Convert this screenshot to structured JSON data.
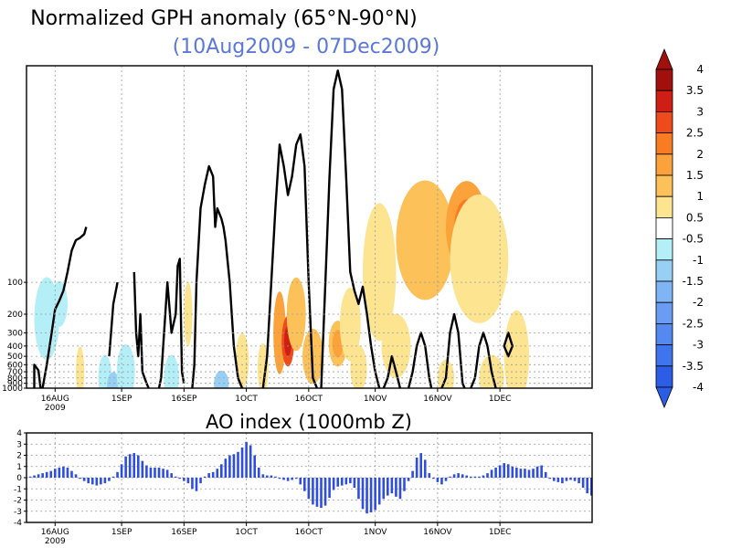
{
  "colors": {
    "pos": [
      "#ffffff",
      "#fde491",
      "#fcc158",
      "#fba23a",
      "#f97b22",
      "#ef4a1b",
      "#cf1f14",
      "#a2100e"
    ],
    "neg": [
      "#ffffff",
      "#b4eef7",
      "#98d0f5",
      "#80b5f5",
      "#6a9cf3",
      "#5489ef",
      "#3f75ec",
      "#2c5ee5"
    ],
    "ao_bar": "#2f4ee0",
    "contour": "#000000"
  },
  "chart_data": [
    {
      "type": "heatmap",
      "title": "Normalized GPH anomaly (65°N-90°N)",
      "subtitle": "(10Aug2009 - 07Dec2009)",
      "x_ticks": [
        {
          "label": "16AUG",
          "sub": "2009",
          "day": 6
        },
        {
          "label": "1SEP",
          "sub": "",
          "day": 22
        },
        {
          "label": "16SEP",
          "sub": "",
          "day": 37
        },
        {
          "label": "1OCT",
          "sub": "",
          "day": 52
        },
        {
          "label": "16OCT",
          "sub": "",
          "day": 67
        },
        {
          "label": "1NOV",
          "sub": "",
          "day": 83
        },
        {
          "label": "16NOV",
          "sub": "",
          "day": 98
        },
        {
          "label": "1DEC",
          "sub": "",
          "day": 113
        }
      ],
      "y_ticks": [
        "100",
        "200",
        "300",
        "400",
        "500",
        "600",
        "700",
        "800",
        "900",
        "1000"
      ],
      "y_tick_values": [
        100,
        200,
        300,
        400,
        500,
        600,
        700,
        800,
        900,
        1000
      ],
      "y_axis": "pressure (log)",
      "colorbar": {
        "labels": [
          "4",
          "3.5",
          "3",
          "2.5",
          "2",
          "1.5",
          "1",
          "0.5",
          "-0.5",
          "-1",
          "-1.5",
          "-2",
          "-2.5",
          "-3",
          "-3.5",
          "-4"
        ],
        "levels": [
          4,
          3.5,
          3,
          2.5,
          2,
          1.5,
          1,
          0.5,
          -0.5,
          -1,
          -1.5,
          -2,
          -2.5,
          -3,
          -3.5,
          -4
        ]
      },
      "regions": [
        {
          "day": 4,
          "p": 220,
          "w": 3.0,
          "h": 0.9,
          "v": -0.95
        },
        {
          "day": 7,
          "p": 160,
          "w": 2.0,
          "h": 0.5,
          "v": -0.8
        },
        {
          "day": 12,
          "p": 700,
          "w": 1.0,
          "h": 0.55,
          "v": 0.9
        },
        {
          "day": 18,
          "p": 800,
          "w": 1.6,
          "h": 0.5,
          "v": -0.9
        },
        {
          "day": 20,
          "p": 950,
          "w": 1.5,
          "h": 0.3,
          "v": -1.2
        },
        {
          "day": 23,
          "p": 700,
          "w": 2.2,
          "h": 0.6,
          "v": -0.8
        },
        {
          "day": 34,
          "p": 800,
          "w": 1.8,
          "h": 0.5,
          "v": -0.7
        },
        {
          "day": 38,
          "p": 200,
          "w": 1.0,
          "h": 0.7,
          "v": 0.75
        },
        {
          "day": 46,
          "p": 920,
          "w": 1.8,
          "h": 0.3,
          "v": -1.0
        },
        {
          "day": 51,
          "p": 550,
          "w": 1.6,
          "h": 0.6,
          "v": 0.8
        },
        {
          "day": 56,
          "p": 650,
          "w": 1.3,
          "h": 0.55,
          "v": 0.7
        },
        {
          "day": 60,
          "p": 300,
          "w": 1.5,
          "h": 0.9,
          "v": 1.6
        },
        {
          "day": 62,
          "p": 360,
          "w": 1.5,
          "h": 0.55,
          "v": 2.7
        },
        {
          "day": 64,
          "p": 200,
          "w": 2.3,
          "h": 0.8,
          "v": 1.2
        },
        {
          "day": 68,
          "p": 500,
          "w": 2.5,
          "h": 0.6,
          "v": 1.0
        },
        {
          "day": 74,
          "p": 380,
          "w": 2.2,
          "h": 0.5,
          "v": 1.3
        },
        {
          "day": 77,
          "p": 250,
          "w": 2.5,
          "h": 0.8,
          "v": 0.9
        },
        {
          "day": 79,
          "p": 650,
          "w": 2.0,
          "h": 0.5,
          "v": 0.8
        },
        {
          "day": 84,
          "p": 80,
          "w": 4.0,
          "h": 1.5,
          "v": 0.7
        },
        {
          "day": 88,
          "p": 400,
          "w": 3.5,
          "h": 0.7,
          "v": 0.6
        },
        {
          "day": 95,
          "p": 40,
          "w": 7.0,
          "h": 1.3,
          "v": 1.05
        },
        {
          "day": 105,
          "p": 30,
          "w": 5.0,
          "h": 1.0,
          "v": 1.85
        },
        {
          "day": 108,
          "p": 60,
          "w": 7.0,
          "h": 1.4,
          "v": 0.8
        },
        {
          "day": 100,
          "p": 800,
          "w": 2.0,
          "h": 0.4,
          "v": 0.6
        },
        {
          "day": 110,
          "p": 900,
          "w": 2.0,
          "h": 0.3,
          "v": -0.7
        },
        {
          "day": 111,
          "p": 800,
          "w": 3.0,
          "h": 0.5,
          "v": 0.9
        },
        {
          "day": 117,
          "p": 500,
          "w": 3.0,
          "h": 1.0,
          "v": 0.7
        }
      ],
      "contours": [
        {
          "closed": false,
          "pts": [
            [
              1,
              1000
            ],
            [
              1,
              600
            ],
            [
              2,
              680
            ],
            [
              2.5,
              1000
            ]
          ]
        },
        {
          "closed": false,
          "pts": [
            [
              3,
              1000
            ],
            [
              4,
              600
            ],
            [
              5,
              330
            ],
            [
              6,
              180
            ],
            [
              7,
              150
            ],
            [
              8,
              120
            ],
            [
              9,
              80
            ],
            [
              10,
              50
            ],
            [
              11,
              40
            ],
            [
              12,
              38
            ],
            [
              13,
              35
            ],
            [
              13.5,
              30
            ]
          ]
        },
        {
          "closed": false,
          "pts": [
            [
              19,
              500
            ],
            [
              20,
              160
            ],
            [
              21,
              100
            ]
          ]
        },
        {
          "closed": false,
          "pts": [
            [
              25,
              80
            ],
            [
              25.5,
              300
            ],
            [
              26,
              500
            ],
            [
              26.5,
              200
            ],
            [
              27,
              700
            ],
            [
              28,
              900
            ],
            [
              28.5,
              1000
            ]
          ]
        },
        {
          "closed": false,
          "pts": [
            [
              31,
              1000
            ],
            [
              31.5,
              800
            ],
            [
              32,
              400
            ],
            [
              33,
              100
            ],
            [
              34,
              300
            ],
            [
              35,
              200
            ],
            [
              35.5,
              70
            ],
            [
              36,
              60
            ],
            [
              36.5,
              700
            ],
            [
              37,
              900
            ]
          ]
        },
        {
          "closed": false,
          "pts": [
            [
              39,
              1000
            ],
            [
              39.5,
              600
            ],
            [
              40,
              100
            ],
            [
              41,
              20
            ],
            [
              42,
              12
            ],
            [
              43,
              8
            ],
            [
              44,
              10
            ],
            [
              44.5,
              30
            ],
            [
              45,
              20
            ],
            [
              46,
              25
            ],
            [
              46.5,
              30
            ],
            [
              47,
              40
            ],
            [
              48,
              100
            ],
            [
              49,
              400
            ],
            [
              50,
              800
            ],
            [
              51,
              1000
            ]
          ]
        },
        {
          "closed": false,
          "pts": [
            [
              56,
              1000
            ],
            [
              57,
              500
            ],
            [
              58,
              100
            ],
            [
              59,
              20
            ],
            [
              60,
              5
            ],
            [
              61,
              8
            ],
            [
              62,
              15
            ],
            [
              63,
              10
            ],
            [
              64,
              5
            ],
            [
              65,
              4
            ],
            [
              66,
              8
            ],
            [
              67,
              100
            ],
            [
              68,
              800
            ],
            [
              69,
              1000
            ]
          ]
        },
        {
          "closed": false,
          "pts": [
            [
              70,
              1000
            ],
            [
              71,
              100
            ],
            [
              72,
              10
            ],
            [
              73,
              1.5
            ],
            [
              74,
              1
            ],
            [
              75,
              1.5
            ],
            [
              76,
              10
            ],
            [
              77,
              80
            ],
            [
              78,
              120
            ],
            [
              79,
              160
            ],
            [
              80,
              110
            ],
            [
              81,
              200
            ],
            [
              82,
              400
            ],
            [
              83,
              700
            ],
            [
              84,
              1000
            ]
          ]
        },
        {
          "closed": false,
          "pts": [
            [
              85,
              1000
            ],
            [
              86,
              800
            ],
            [
              87,
              500
            ],
            [
              88,
              700
            ],
            [
              89,
              1000
            ]
          ]
        },
        {
          "closed": false,
          "pts": [
            [
              91,
              1000
            ],
            [
              92,
              700
            ],
            [
              93,
              400
            ],
            [
              94,
              300
            ],
            [
              95,
              400
            ],
            [
              96,
              800
            ],
            [
              96.5,
              1000
            ]
          ]
        },
        {
          "closed": false,
          "pts": [
            [
              99,
              1000
            ],
            [
              100,
              800
            ],
            [
              101,
              300
            ],
            [
              102,
              200
            ],
            [
              103,
              300
            ],
            [
              104,
              900
            ],
            [
              104.5,
              1000
            ]
          ]
        },
        {
          "closed": false,
          "pts": [
            [
              106,
              1000
            ],
            [
              107,
              800
            ],
            [
              108,
              400
            ],
            [
              109,
              300
            ],
            [
              110,
              400
            ],
            [
              111,
              700
            ],
            [
              112,
              1000
            ]
          ]
        },
        {
          "closed": true,
          "pts": [
            [
              114,
              400
            ],
            [
              115,
              300
            ],
            [
              116,
              400
            ],
            [
              115,
              500
            ]
          ]
        }
      ]
    },
    {
      "type": "bar",
      "title": "AO index (1000mb Z)",
      "x_ticks": [
        "16AUG",
        "1SEP",
        "16SEP",
        "1OCT",
        "16OCT",
        "1NOV",
        "16NOV",
        "1DEC"
      ],
      "x_sub": "2009",
      "y_ticks": [
        "4",
        "3",
        "2",
        "1",
        "0",
        "-1",
        "-2",
        "-3",
        "-4"
      ],
      "ylim": [
        -4,
        4
      ],
      "values": [
        0.1,
        0.2,
        0.3,
        0.4,
        0.5,
        0.6,
        0.8,
        0.9,
        1.0,
        0.9,
        0.6,
        0.3,
        -0.1,
        -0.3,
        -0.5,
        -0.6,
        -0.7,
        -0.6,
        -0.5,
        -0.3,
        0.1,
        0.5,
        1.2,
        1.9,
        2.1,
        2.2,
        2.0,
        1.5,
        1.1,
        0.9,
        0.9,
        0.9,
        0.8,
        0.7,
        0.4,
        0.1,
        -0.1,
        -0.3,
        -0.5,
        -1.0,
        -1.2,
        -0.5,
        0.1,
        0.4,
        0.5,
        0.8,
        1.2,
        1.7,
        2.0,
        2.1,
        2.3,
        2.7,
        3.2,
        2.9,
        2.0,
        0.9,
        0.3,
        0.2,
        0.2,
        0.1,
        -0.1,
        -0.2,
        -0.3,
        -0.2,
        -0.1,
        -0.6,
        -1.2,
        -1.9,
        -2.4,
        -2.6,
        -2.7,
        -2.5,
        -1.8,
        -1.1,
        -0.8,
        -0.7,
        -0.6,
        -0.5,
        -0.9,
        -1.9,
        -2.8,
        -3.2,
        -3.1,
        -2.9,
        -2.4,
        -1.9,
        -1.6,
        -1.4,
        -1.7,
        -1.9,
        -1.2,
        -0.3,
        0.6,
        1.8,
        2.2,
        1.6,
        0.4,
        -0.1,
        -0.4,
        -0.6,
        -0.3,
        0.1,
        0.3,
        0.4,
        0.3,
        0.2,
        0.1,
        0.1,
        0.1,
        0.2,
        0.4,
        0.7,
        0.9,
        1.1,
        1.3,
        1.2,
        1.0,
        0.9,
        0.8,
        0.8,
        0.7,
        0.8,
        1.0,
        1.1,
        0.5,
        -0.1,
        -0.3,
        -0.4,
        -0.5,
        -0.3,
        -0.2,
        -0.3,
        -0.5,
        -0.9,
        -1.4,
        -1.6,
        -1.3,
        -0.9
      ]
    }
  ]
}
